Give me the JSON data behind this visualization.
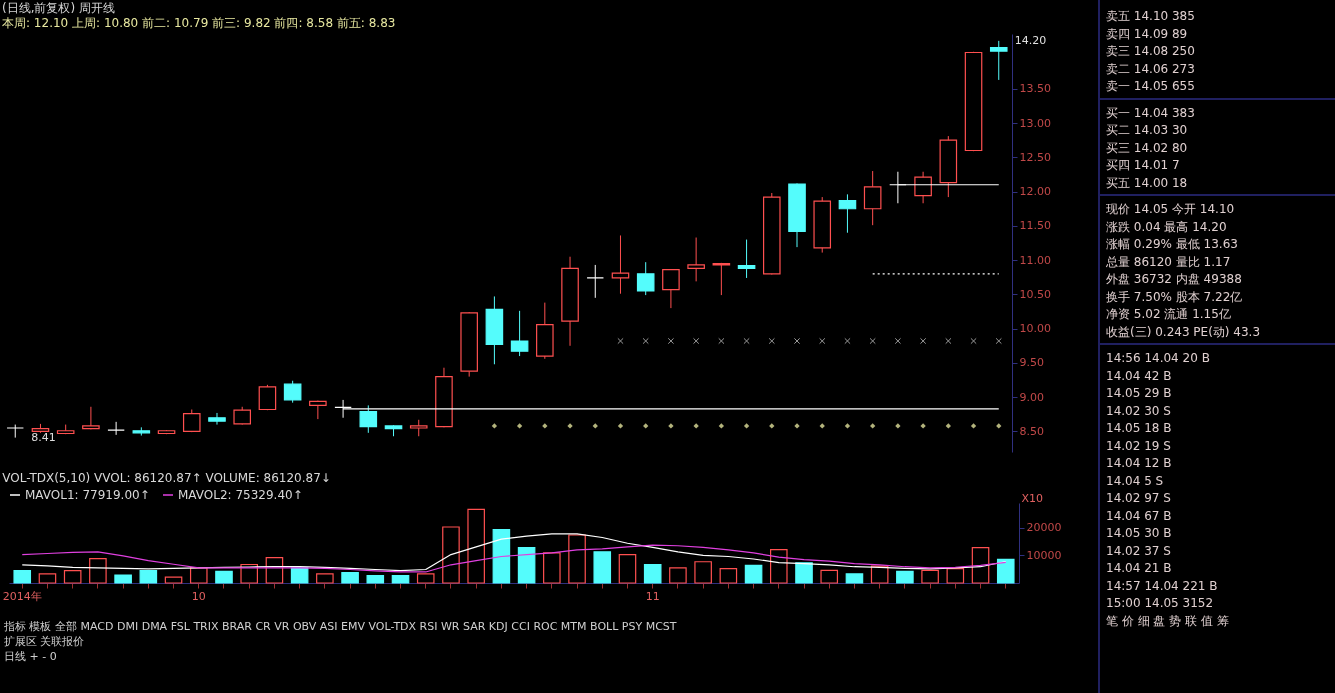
{
  "chart_data": [
    {
      "type": "candlestick",
      "title": "(日线,前复权) 周开线",
      "subtitle": "本周: 12.10 上周: 10.80 前二: 10.79 前三: 9.82 前四: 8.58 前五: 8.83",
      "categories": [
        null,
        null,
        null,
        null,
        null,
        null,
        null,
        null,
        null,
        null,
        null,
        null,
        null,
        null,
        null,
        null,
        null,
        null,
        null,
        null,
        null,
        null,
        null,
        null,
        null,
        null,
        null,
        null,
        null,
        null,
        null,
        null,
        null,
        null,
        null,
        null,
        null,
        null,
        null,
        null
      ],
      "ohlc": [
        [
          8.55,
          8.6,
          8.41,
          8.55
        ],
        [
          8.5,
          8.61,
          8.48,
          8.54
        ],
        [
          8.47,
          8.6,
          8.46,
          8.51
        ],
        [
          8.54,
          8.86,
          8.53,
          8.58
        ],
        [
          8.52,
          8.64,
          8.45,
          8.52
        ],
        [
          8.51,
          8.56,
          8.44,
          8.48
        ],
        [
          8.47,
          8.52,
          8.46,
          8.51
        ],
        [
          8.5,
          8.82,
          8.49,
          8.76
        ],
        [
          8.7,
          8.77,
          8.6,
          8.65
        ],
        [
          8.61,
          8.86,
          8.6,
          8.81
        ],
        [
          8.82,
          9.18,
          8.81,
          9.15
        ],
        [
          9.19,
          9.24,
          8.92,
          8.96
        ],
        [
          8.88,
          8.95,
          8.68,
          8.94
        ],
        [
          8.85,
          8.96,
          8.7,
          8.85
        ],
        [
          8.79,
          8.88,
          8.48,
          8.57
        ],
        [
          8.58,
          8.59,
          8.43,
          8.54
        ],
        [
          8.55,
          8.67,
          8.43,
          8.58
        ],
        [
          8.57,
          9.43,
          8.56,
          9.3
        ],
        [
          9.38,
          10.24,
          9.3,
          10.23
        ],
        [
          10.28,
          10.47,
          9.48,
          9.77
        ],
        [
          9.82,
          10.26,
          9.6,
          9.67
        ],
        [
          9.6,
          10.38,
          9.56,
          10.06
        ],
        [
          10.11,
          11.05,
          9.75,
          10.88
        ],
        [
          10.74,
          10.93,
          10.45,
          10.74
        ],
        [
          10.74,
          11.36,
          10.51,
          10.81
        ],
        [
          10.8,
          10.97,
          10.49,
          10.55
        ],
        [
          10.57,
          10.87,
          10.3,
          10.86
        ],
        [
          10.88,
          11.33,
          10.69,
          10.93
        ],
        [
          10.93,
          10.96,
          10.49,
          10.95
        ],
        [
          10.92,
          11.3,
          10.74,
          10.88
        ],
        [
          10.8,
          11.98,
          10.79,
          11.92
        ],
        [
          12.11,
          12.12,
          11.19,
          11.42
        ],
        [
          11.18,
          11.92,
          11.11,
          11.86
        ],
        [
          11.87,
          11.96,
          11.4,
          11.75
        ],
        [
          11.75,
          12.3,
          11.51,
          12.07
        ],
        [
          12.1,
          12.29,
          11.83,
          12.1
        ],
        [
          11.94,
          12.29,
          11.83,
          12.21
        ],
        [
          12.13,
          12.81,
          11.92,
          12.75
        ],
        [
          12.6,
          14.04,
          12.59,
          14.03
        ],
        [
          14.1,
          14.2,
          13.63,
          14.05
        ]
      ],
      "colors": [
        "#ffffff",
        "#ff5050",
        "#ff5050",
        "#ff5050",
        "#ffffff",
        "#54fcfc",
        "#ff5050",
        "#ff5050",
        "#54fcfc",
        "#ff5050",
        "#ff5050",
        "#54fcfc",
        "#ff5050",
        "#ffffff",
        "#54fcfc",
        "#54fcfc",
        "#ff5050",
        "#ff5050",
        "#ff5050",
        "#54fcfc",
        "#54fcfc",
        "#ff5050",
        "#ff5050",
        "#ffffff",
        "#ff5050",
        "#54fcfc",
        "#ff5050",
        "#ff5050",
        "#ff5050",
        "#54fcfc",
        "#ff5050",
        "#54fcfc",
        "#ff5050",
        "#54fcfc",
        "#ff5050",
        "#ffffff",
        "#ff5050",
        "#ff5050",
        "#ff5050",
        "#54fcfc"
      ],
      "series": [
        {
          "type": "line",
          "color": "#ffffff",
          "line_style": "solid",
          "values": [
            null,
            null,
            null,
            null,
            null,
            null,
            null,
            null,
            null,
            null,
            null,
            null,
            null,
            8.83,
            8.83,
            8.83,
            8.83,
            8.83,
            8.83,
            8.83,
            8.83,
            8.83,
            8.83,
            8.83,
            8.83,
            8.83,
            8.83,
            8.83,
            8.83,
            8.83,
            8.83,
            8.83,
            8.83,
            8.83,
            8.83,
            8.83,
            8.83,
            8.83,
            8.83,
            8.83
          ]
        },
        {
          "type": "line",
          "color": "#ffffff",
          "line_style": "solid",
          "values": [
            null,
            null,
            null,
            null,
            null,
            null,
            null,
            null,
            null,
            null,
            null,
            null,
            null,
            null,
            null,
            null,
            null,
            null,
            null,
            null,
            null,
            null,
            null,
            null,
            null,
            null,
            null,
            null,
            null,
            null,
            null,
            null,
            null,
            null,
            null,
            12.1,
            12.1,
            12.1,
            12.1,
            12.1
          ]
        },
        {
          "type": "line",
          "color": "#ffffff",
          "line_style": "dotted",
          "values": [
            null,
            null,
            null,
            null,
            null,
            null,
            null,
            null,
            null,
            null,
            null,
            null,
            null,
            null,
            null,
            null,
            null,
            null,
            null,
            null,
            null,
            null,
            null,
            null,
            null,
            null,
            null,
            null,
            null,
            null,
            null,
            null,
            null,
            null,
            10.8,
            10.8,
            10.8,
            10.8,
            10.8,
            10.8
          ]
        },
        {
          "type": "scatter",
          "color": "#dddddd",
          "marker": "cross",
          "values": [
            null,
            null,
            null,
            null,
            null,
            null,
            null,
            null,
            null,
            null,
            null,
            null,
            null,
            null,
            null,
            null,
            null,
            null,
            null,
            null,
            null,
            null,
            null,
            null,
            9.82,
            9.82,
            9.82,
            9.82,
            9.82,
            9.82,
            9.82,
            9.82,
            9.82,
            9.82,
            9.82,
            9.82,
            9.82,
            9.82,
            9.82,
            9.82
          ]
        },
        {
          "type": "scatter",
          "color": "#ffffb0",
          "marker": "diamond",
          "values": [
            null,
            null,
            null,
            null,
            null,
            null,
            null,
            null,
            null,
            null,
            null,
            null,
            null,
            null,
            null,
            null,
            null,
            null,
            null,
            8.58,
            8.58,
            8.58,
            8.58,
            8.58,
            8.58,
            8.58,
            8.58,
            8.58,
            8.58,
            8.58,
            8.58,
            8.58,
            8.58,
            8.58,
            8.58,
            8.58,
            8.58,
            8.58,
            8.58,
            8.58
          ]
        }
      ],
      "ylim": [
        8.2,
        14.3
      ],
      "yticks": [
        {
          "value": 8.5,
          "label": "8.50"
        },
        {
          "value": 9,
          "label": "9.00"
        },
        {
          "value": 9.5,
          "label": "9.50"
        },
        {
          "value": 10,
          "label": "10.00"
        },
        {
          "value": 10.5,
          "label": "10.50"
        },
        {
          "value": 11,
          "label": "11.00"
        },
        {
          "value": 11.5,
          "label": "11.50"
        },
        {
          "value": 12,
          "label": "12.00"
        },
        {
          "value": 12.5,
          "label": "12.50"
        },
        {
          "value": 13,
          "label": "13.00"
        },
        {
          "value": 13.5,
          "label": "13.50"
        }
      ],
      "tick_labels": "y",
      "grid": false,
      "annotations": [
        "8.41",
        "14.20"
      ]
    },
    {
      "type": "bar",
      "title": "VOL-TDX(5,10) VVOL: 86120.87↑ VOLUME: 86120.87↓",
      "ylabel": "X10",
      "categories": [
        "2014年",
        null,
        null,
        null,
        null,
        null,
        null,
        "10",
        null,
        null,
        null,
        null,
        null,
        null,
        null,
        null,
        null,
        null,
        null,
        null,
        null,
        null,
        null,
        null,
        null,
        "11",
        null,
        null,
        null,
        null,
        null,
        null,
        null,
        null,
        null,
        null,
        null,
        null,
        null,
        null
      ],
      "values": [
        4500,
        3300,
        4500,
        8800,
        2900,
        4500,
        2100,
        5500,
        4200,
        6700,
        9200,
        5500,
        3300,
        3800,
        2700,
        2700,
        3300,
        20300,
        26700,
        19400,
        12800,
        10900,
        17400,
        11300,
        10300,
        6700,
        5500,
        7700,
        5200,
        6400,
        12100,
        7300,
        4600,
        3300,
        6100,
        4200,
        4600,
        5200,
        12800,
        8600
      ],
      "colors": [
        "#54fcfc",
        "#ff5050",
        "#ff5050",
        "#ff5050",
        "#54fcfc",
        "#54fcfc",
        "#ff5050",
        "#ff5050",
        "#54fcfc",
        "#ff5050",
        "#ff5050",
        "#54fcfc",
        "#ff5050",
        "#54fcfc",
        "#54fcfc",
        "#54fcfc",
        "#ff5050",
        "#ff5050",
        "#ff5050",
        "#54fcfc",
        "#54fcfc",
        "#ff5050",
        "#ff5050",
        "#54fcfc",
        "#ff5050",
        "#54fcfc",
        "#ff5050",
        "#ff5050",
        "#ff5050",
        "#54fcfc",
        "#ff5050",
        "#54fcfc",
        "#ff5050",
        "#54fcfc",
        "#ff5050",
        "#54fcfc",
        "#ff5050",
        "#ff5050",
        "#ff5050",
        "#54fcfc"
      ],
      "series": [
        {
          "type": "line",
          "name": "MAVOL1: 77919.00↑",
          "color": "#ffffff",
          "values": [
            6600,
            6200,
            5700,
            5500,
            5300,
            5100,
            5300,
            5500,
            5700,
            5800,
            5900,
            5900,
            5700,
            5300,
            4900,
            4500,
            4900,
            10300,
            13100,
            15900,
            17000,
            17800,
            17800,
            16500,
            14400,
            12900,
            11300,
            10000,
            9600,
            8700,
            7400,
            7000,
            6600,
            5900,
            5700,
            5300,
            5100,
            5500,
            5900,
            7800
          ]
        },
        {
          "type": "line",
          "name": "MAVOL2: 75329.40↑",
          "color": "#e040e0",
          "values": [
            10300,
            10700,
            11100,
            11300,
            9800,
            8100,
            6800,
            5500,
            5500,
            5500,
            5500,
            5500,
            5300,
            4900,
            4400,
            4000,
            4000,
            6600,
            8100,
            9600,
            10300,
            10900,
            12000,
            12400,
            13100,
            13700,
            13500,
            12900,
            12000,
            10900,
            9400,
            8500,
            7900,
            7000,
            6600,
            5900,
            5500,
            5700,
            6400,
            7500
          ]
        }
      ],
      "ylim": [
        0,
        29000
      ],
      "yticks": [
        10000,
        20000
      ],
      "grid": false,
      "legend": "top",
      "annotations": [
        "指标 模板 全部 MACD DMI DMA FSL TRIX BRAR CR VR OBV ASI EMV VOL-TDX RSI WR SAR KDJ CCI ROC MTM BOLL PSY MCST",
        "扩展区 关联报价",
        "日线 + - 0"
      ]
    },
    {
      "type": "other",
      "annotations": [
        "卖五 14.10 385",
        "卖四 14.09 89",
        "卖三 14.08 250",
        "卖二 14.06 273",
        "卖一 14.05 655",
        "买一 14.04 383",
        "买二 14.03 30",
        "买三 14.02 80",
        "买四 14.01 7",
        "买五 14.00 18",
        "现价 14.05 今开 14.10",
        "涨跌 0.04 最高 14.20",
        "涨幅 0.29% 最低 13.63",
        "总量 86120 量比 1.17",
        "外盘 36732 内盘 49388",
        "换手 7.50% 股本 7.22亿",
        "净资 5.02 流通 1.15亿",
        "收益(三) 0.243 PE(动) 43.3",
        "14:56 14.04 20 B",
        "14.04 42 B",
        "14.05 29 B",
        "14.02 30 S",
        "14.05 18 B",
        "14.02 19 S",
        "14.04 12 B",
        "14.04 5 S",
        "14.02 97 S",
        "14.04 67 B",
        "14.05 30 B",
        "14.02 37 S",
        "14.04 21 B",
        "14:57 14.04 221 B",
        "15:00 14.05 3152",
        "笔 价 细 盘 势 联 值 筹"
      ]
    }
  ]
}
